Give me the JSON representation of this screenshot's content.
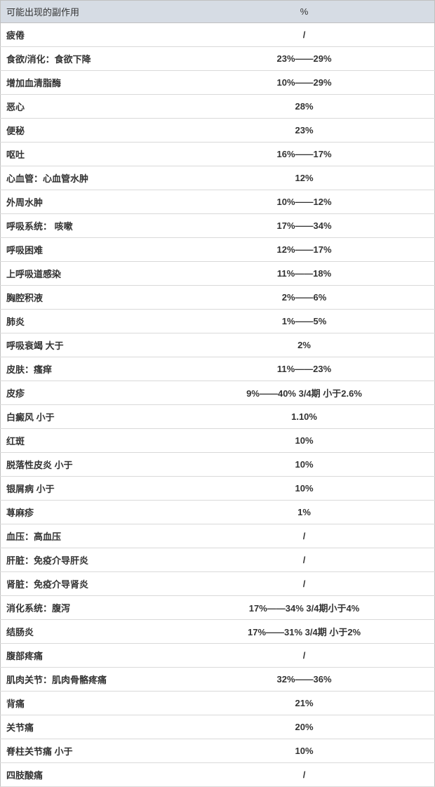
{
  "table": {
    "columns": [
      {
        "label": "可能出现的副作用",
        "align": "left"
      },
      {
        "label": "%",
        "align": "center"
      }
    ],
    "header_bg": "#d6dce4",
    "border_color": "#c0c0c0",
    "row_border_color": "#d9d9d9",
    "text_color": "#333333",
    "font_size": 13,
    "rows": [
      {
        "label": "疲倦",
        "value": "/"
      },
      {
        "label": "食欲/消化：食欲下降",
        "value": "23%——29%"
      },
      {
        "label": "增加血清脂酶",
        "value": "10%——29%"
      },
      {
        "label": "恶心",
        "value": "28%"
      },
      {
        "label": "便秘",
        "value": "23%"
      },
      {
        "label": "呕吐",
        "value": "16%——17%"
      },
      {
        "label": "心血管：心血管水肿",
        "value": "12%"
      },
      {
        "label": "外周水肿",
        "value": "10%——12%"
      },
      {
        "label": "呼吸系统： 咳嗽",
        "value": "17%——34%"
      },
      {
        "label": "呼吸困难",
        "value": "12%——17%"
      },
      {
        "label": "上呼吸道感染",
        "value": "11%——18%"
      },
      {
        "label": "胸腔积液",
        "value": "2%——6%"
      },
      {
        "label": "肺炎",
        "value": "1%——5%"
      },
      {
        "label": "呼吸衰竭 大于",
        "value": "2%"
      },
      {
        "label": "皮肤：瘙痒",
        "value": "11%——23%"
      },
      {
        "label": "皮疹",
        "value": "9%——40% 3/4期 小于2.6%"
      },
      {
        "label": "白癜风 小于",
        "value": "1.10%"
      },
      {
        "label": "红斑",
        "value": "10%"
      },
      {
        "label": "脱落性皮炎  小于",
        "value": "10%"
      },
      {
        "label": "银屑病 小于",
        "value": "10%"
      },
      {
        "label": "荨麻疹",
        "value": "1%"
      },
      {
        "label": "血压：高血压",
        "value": "/"
      },
      {
        "label": "肝脏：免疫介导肝炎",
        "value": "/"
      },
      {
        "label": "肾脏：免疫介导肾炎",
        "value": "/"
      },
      {
        "label": "消化系统：腹泻",
        "value": "17%——34%  3/4期小于4%"
      },
      {
        "label": "结肠炎",
        "value": "17%——31%  3/4期 小于2%"
      },
      {
        "label": "腹部疼痛",
        "value": "/"
      },
      {
        "label": "肌肉关节：肌肉骨骼疼痛",
        "value": "32%——36%"
      },
      {
        "label": "背痛",
        "value": "21%"
      },
      {
        "label": "关节痛",
        "value": "20%"
      },
      {
        "label": "脊柱关节痛 小于",
        "value": "10%"
      },
      {
        "label": "四肢酸痛",
        "value": "/"
      }
    ]
  }
}
